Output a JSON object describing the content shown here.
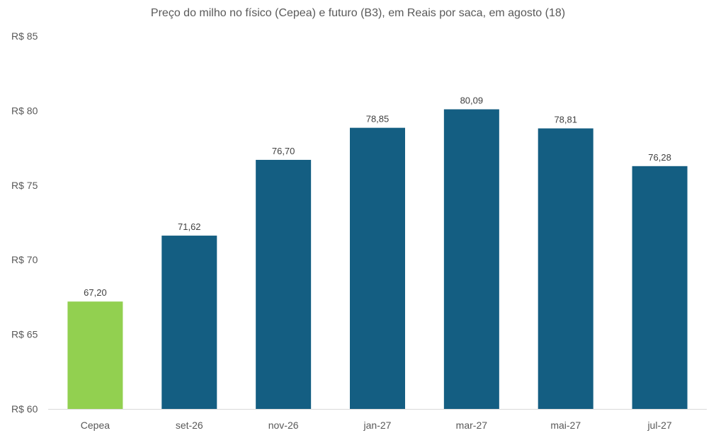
{
  "chart_data": {
    "type": "bar",
    "title": "Preço do milho no físico (Cepea) e futuro (B3), em Reais por saca, em agosto (18)",
    "xlabel": "",
    "ylabel": "",
    "categories": [
      "Cepea",
      "set-26",
      "nov-26",
      "jan-27",
      "mar-27",
      "mai-27",
      "jul-27"
    ],
    "values": [
      67.2,
      71.62,
      76.7,
      78.85,
      80.09,
      78.81,
      76.28
    ],
    "value_labels": [
      "67,20",
      "71,62",
      "76,70",
      "78,85",
      "80,09",
      "78,81",
      "76,28"
    ],
    "ylim": [
      60,
      85
    ],
    "yticks": [
      60,
      65,
      70,
      75,
      80,
      85
    ],
    "ytick_labels": [
      "R$ 60",
      "R$ 65",
      "R$ 70",
      "R$ 75",
      "R$ 80",
      "R$ 85"
    ],
    "bar_colors": [
      "#92d050",
      "#145e82",
      "#145e82",
      "#145e82",
      "#145e82",
      "#145e82",
      "#145e82"
    ],
    "grid": false,
    "legend": "none"
  }
}
